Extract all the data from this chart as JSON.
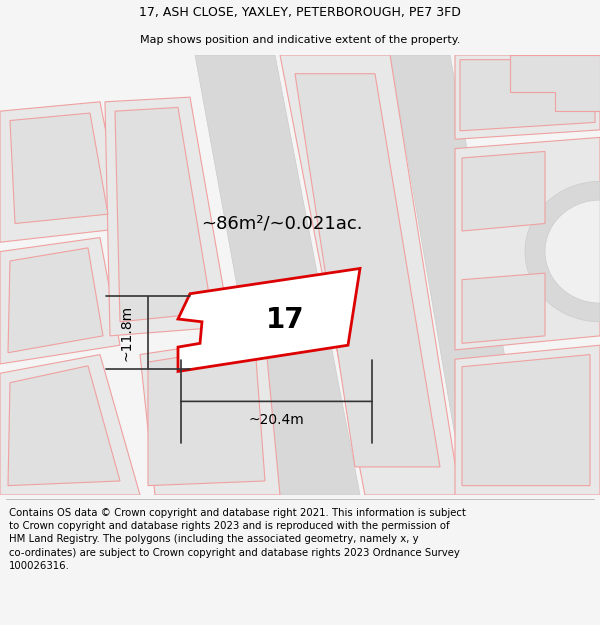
{
  "title_line1": "17, ASH CLOSE, YAXLEY, PETERBOROUGH, PE7 3FD",
  "title_line2": "Map shows position and indicative extent of the property.",
  "footer_text": "Contains OS data © Crown copyright and database right 2021. This information is subject\nto Crown copyright and database rights 2023 and is reproduced with the permission of\nHM Land Registry. The polygons (including the associated geometry, namely x, y\nco-ordinates) are subject to Crown copyright and database rights 2023 Ordnance Survey\n100026316.",
  "area_label": "~86m²/~0.021ac.",
  "number_label": "17",
  "dim_width": "~20.4m",
  "dim_height": "~11.8m",
  "bg_color": "#f5f5f5",
  "map_bg": "#ffffff",
  "red_color": "#e8000000",
  "poly_outline": "#f0a0a0",
  "building_fill": "#e8e8e8",
  "road_fill": "#d8d8d8",
  "title_fontsize": 9,
  "footer_fontsize": 7.5
}
